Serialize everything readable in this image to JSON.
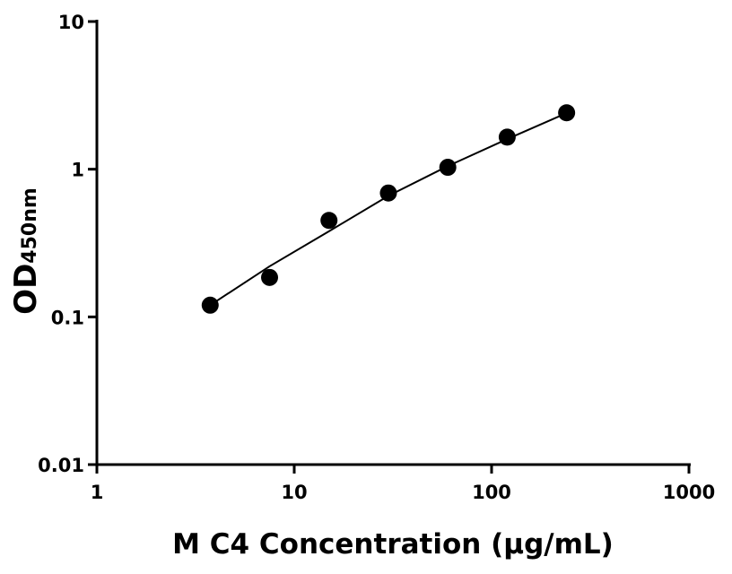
{
  "chart_data": {
    "type": "scatter",
    "xlabel": "M C4 Concentration (μg/mL)",
    "ylabel": "OD",
    "ylabel_sub": "450nm",
    "xscale": "log",
    "yscale": "log",
    "xlim": [
      1,
      1000
    ],
    "ylim": [
      0.01,
      10
    ],
    "xticks": [
      1,
      10,
      100,
      1000
    ],
    "yticks": [
      0.01,
      0.1,
      1,
      10
    ],
    "series": [
      {
        "color": "#000000",
        "x": [
          3.75,
          7.5,
          15,
          30,
          60,
          120,
          240
        ],
        "values": [
          0.12,
          0.185,
          0.45,
          0.69,
          1.03,
          1.65,
          2.41
        ]
      }
    ],
    "fit": {
      "color": "#000000",
      "x": [
        3.75,
        7.5,
        15,
        30,
        60,
        120,
        240
      ],
      "values": [
        0.12,
        0.22,
        0.38,
        0.66,
        1.05,
        1.6,
        2.4
      ]
    }
  }
}
